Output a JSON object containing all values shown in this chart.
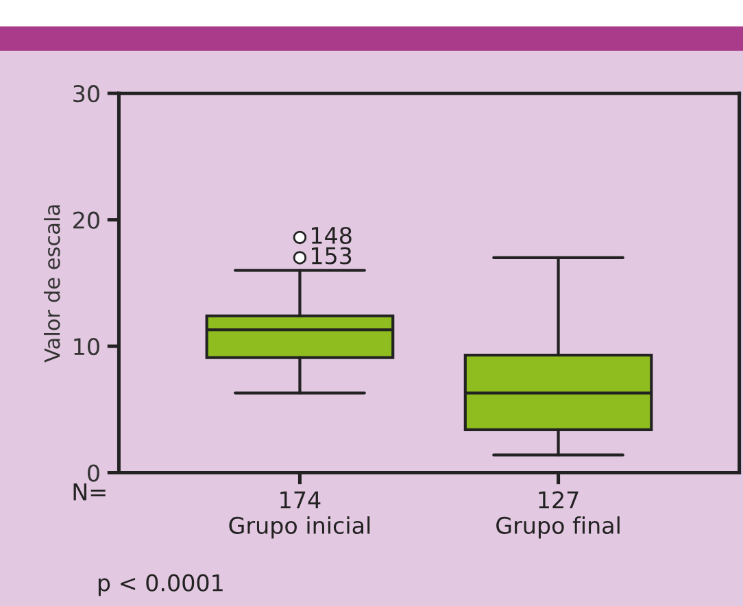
{
  "chart_data": {
    "type": "box",
    "ylabel": "Valor de escala",
    "categories": [
      "174\nGrupo inicial",
      "127\nGrupo final"
    ],
    "color": "#8fbc1e",
    "boxes": [
      {
        "low": 6.3,
        "q1": 9.1,
        "median": 11.3,
        "q3": 12.4,
        "high": 16.0,
        "outliers": [
          18.6,
          17.0
        ]
      },
      {
        "low": 1.4,
        "q1": 3.4,
        "median": 6.3,
        "q3": 9.3,
        "high": 17.0
      }
    ],
    "ylim": [
      0,
      30
    ],
    "yticks": [
      0,
      10,
      20,
      30
    ],
    "grid": false,
    "annotations": [
      "148",
      "153",
      "N=",
      "p < 0.0001"
    ]
  }
}
